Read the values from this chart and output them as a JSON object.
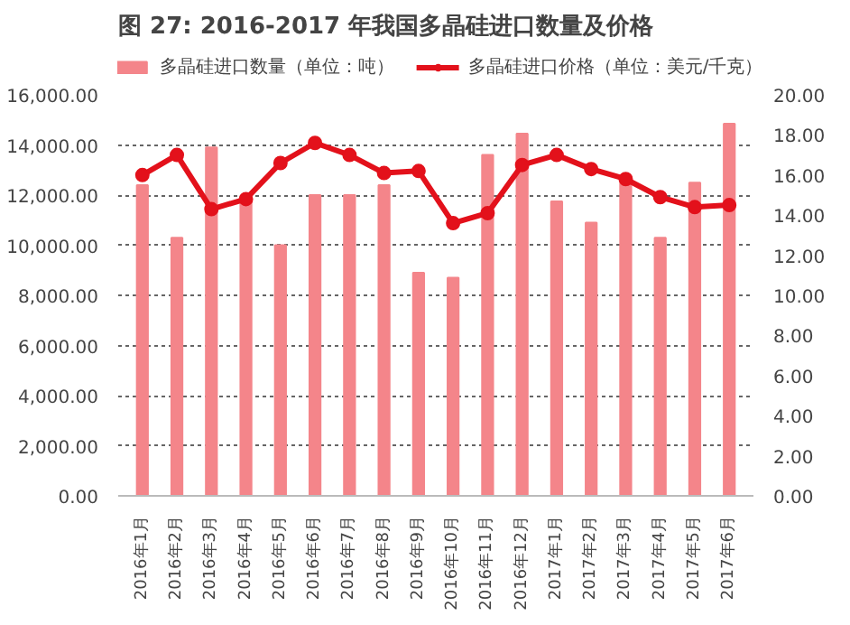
{
  "chart_data": {
    "type": "bar",
    "title": "图 27: 2016-2017 年我国多晶硅进口数量及价格",
    "categories": [
      "2016年1月",
      "2016年2月",
      "2016年3月",
      "2016年4月",
      "2016年5月",
      "2016年6月",
      "2016年7月",
      "2016年8月",
      "2016年9月",
      "2016年10月",
      "2016年11月",
      "2016年12月",
      "2017年1月",
      "2017年2月",
      "2017年3月",
      "2017年4月",
      "2017年5月",
      "2017年6月"
    ],
    "series": [
      {
        "name": "多晶硅进口数量（单位：吨）",
        "color": "#f4858a",
        "values": [
          12400,
          10300,
          13900,
          11800,
          10000,
          12000,
          12000,
          12400,
          8900,
          8700,
          13600,
          14450,
          11750,
          10900,
          12700,
          10300,
          12500,
          14850
        ]
      },
      {
        "name": "多晶硅进口价格（单位：美元/千克）",
        "type": "line",
        "axis": "y2",
        "color": "#e3111b",
        "values": [
          16.0,
          17.0,
          14.3,
          14.8,
          16.6,
          17.6,
          17.0,
          16.1,
          16.2,
          13.6,
          14.1,
          16.5,
          17.0,
          16.3,
          15.8,
          14.9,
          14.4,
          14.5
        ]
      }
    ],
    "ylim": [
      0,
      16000
    ],
    "yticks": [
      {
        "value": 0,
        "label": "0.00"
      },
      {
        "value": 2000,
        "label": "2,000.00"
      },
      {
        "value": 4000,
        "label": "4,000.00"
      },
      {
        "value": 6000,
        "label": "6,000.00"
      },
      {
        "value": 8000,
        "label": "8,000.00"
      },
      {
        "value": 10000,
        "label": "10,000.00"
      },
      {
        "value": 12000,
        "label": "12,000.00"
      },
      {
        "value": 14000,
        "label": "14,000.00"
      },
      {
        "value": 16000,
        "label": "16,000.00"
      }
    ],
    "y2lim": [
      0,
      20
    ],
    "y2ticks": [
      {
        "value": 0,
        "label": "0.00"
      },
      {
        "value": 2,
        "label": "2.00"
      },
      {
        "value": 4,
        "label": "4.00"
      },
      {
        "value": 6,
        "label": "6.00"
      },
      {
        "value": 8,
        "label": "8.00"
      },
      {
        "value": 10,
        "label": "10.00"
      },
      {
        "value": 12,
        "label": "12.00"
      },
      {
        "value": 14,
        "label": "14.00"
      },
      {
        "value": 16,
        "label": "16.00"
      },
      {
        "value": 18,
        "label": "18.00"
      },
      {
        "value": 20,
        "label": "20.00"
      }
    ],
    "grid": "y",
    "legend": "top",
    "marker": "circle",
    "line_style": "solid"
  }
}
